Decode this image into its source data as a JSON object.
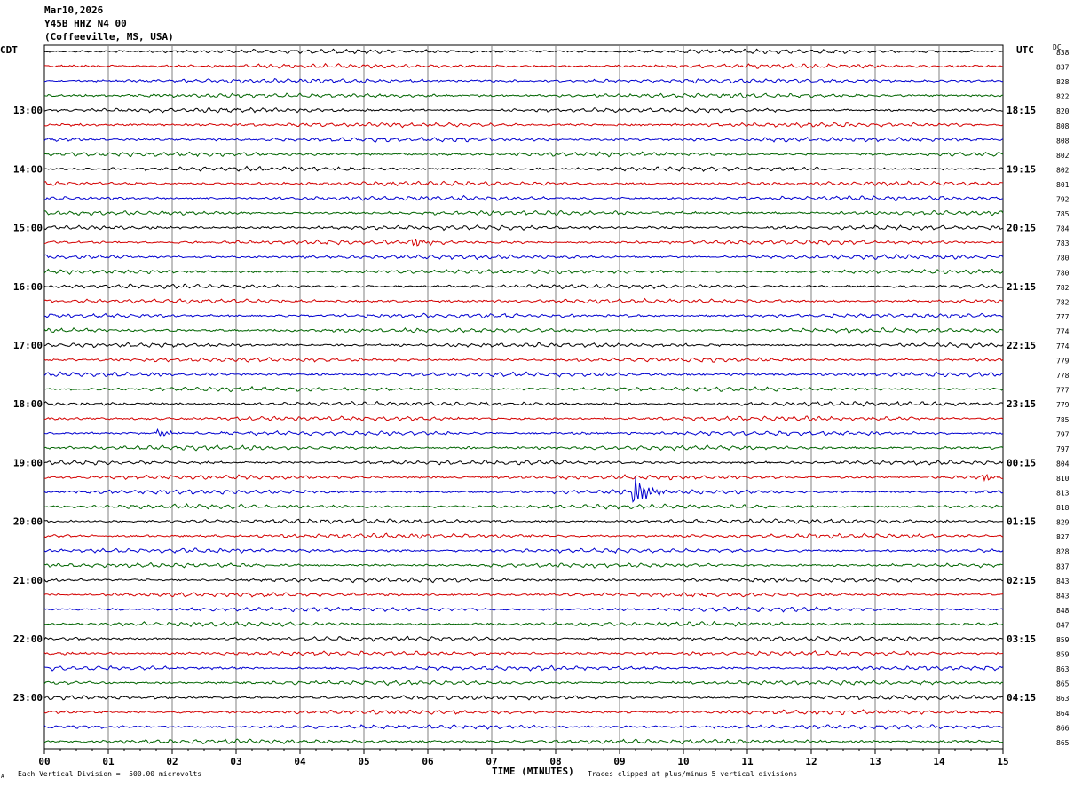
{
  "header": {
    "date": "Mar10,2026",
    "station": "Y45B HHZ N4 00",
    "location": "(Coffeeville, MS, USA)"
  },
  "left_tz": "CDT",
  "right_tz": "UTC",
  "dc_label": "DC",
  "footer": {
    "scale": "Each Vertical Division =  500.00 microvolts",
    "clip": "Traces clipped at plus/minus 5 vertical divisions",
    "mark": "A"
  },
  "colors": {
    "black": "#000000",
    "red": "#d40000",
    "blue": "#0000d0",
    "green": "#006400",
    "grid": "#808080"
  },
  "chart_data": {
    "type": "line",
    "title": "",
    "xlabel": "TIME (MINUTES)",
    "ylabel": "",
    "xlim": [
      0,
      15
    ],
    "x_ticks": [
      "00",
      "01",
      "02",
      "03",
      "04",
      "05",
      "06",
      "07",
      "08",
      "09",
      "10",
      "11",
      "12",
      "13",
      "14",
      "15"
    ],
    "left_time_labels": [
      "13:00",
      "14:00",
      "15:00",
      "16:00",
      "17:00",
      "18:00",
      "19:00",
      "20:00",
      "21:00",
      "22:00",
      "23:00"
    ],
    "right_time_labels": [
      "18:15",
      "19:15",
      "20:15",
      "21:15",
      "22:15",
      "23:15",
      "00:15",
      "01:15",
      "02:15",
      "03:15",
      "04:15"
    ],
    "row_colors": [
      "black",
      "red",
      "blue",
      "green"
    ],
    "dc_offsets": [
      838,
      837,
      828,
      822,
      820,
      808,
      808,
      802,
      802,
      801,
      792,
      785,
      784,
      783,
      780,
      780,
      782,
      782,
      777,
      774,
      774,
      779,
      778,
      777,
      779,
      785,
      797,
      797,
      804,
      810,
      813,
      818,
      829,
      827,
      828,
      837,
      843,
      843,
      848,
      847,
      859,
      859,
      863,
      865,
      863,
      864,
      866,
      865
    ],
    "events": [
      {
        "row": 29,
        "minute": 14.7,
        "note": "red burst"
      },
      {
        "row": 30,
        "minute": 9.25,
        "note": "blue spike"
      },
      {
        "row": 26,
        "minute": 1.8,
        "note": "blue burst"
      },
      {
        "row": 13,
        "minute": 5.8,
        "note": "red burst"
      }
    ]
  }
}
